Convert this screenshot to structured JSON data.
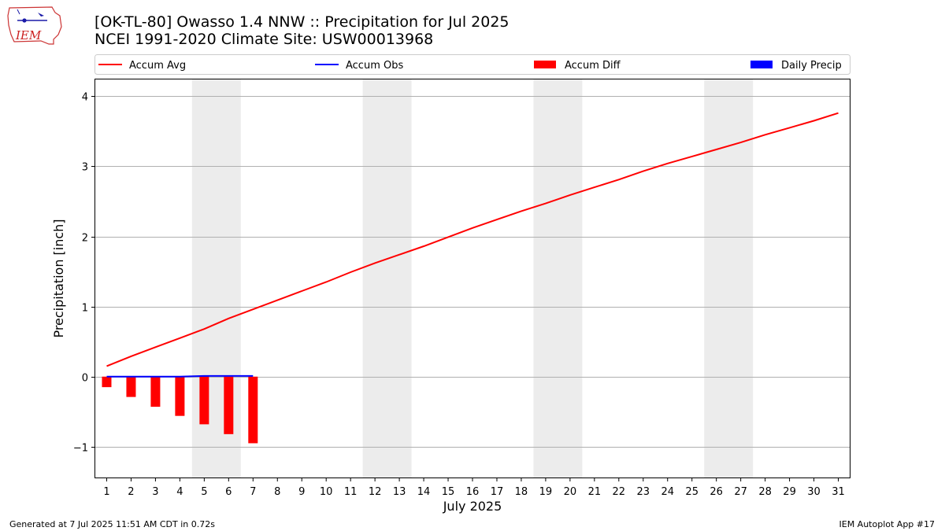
{
  "logo_text": "IEM",
  "title_line1": "[OK-TL-80] Owasso 1.4 NNW :: Precipitation for Jul 2025",
  "title_line2": "NCEI 1991-2020 Climate Site: USW00013968",
  "footer_left": "Generated at 7 Jul 2025 11:51 AM CDT in 0.72s",
  "footer_right": "IEM Autoplot App #17",
  "chart_data": {
    "type": "line",
    "xlabel": "July 2025",
    "ylabel": "Precipitation [inch]",
    "xlim": [
      0.5,
      31.5
    ],
    "ylim": [
      -1.45,
      4.25
    ],
    "x_ticks": [
      1,
      2,
      3,
      4,
      5,
      6,
      7,
      8,
      9,
      10,
      11,
      12,
      13,
      14,
      15,
      16,
      17,
      18,
      19,
      20,
      21,
      22,
      23,
      24,
      25,
      26,
      27,
      28,
      29,
      30,
      31
    ],
    "y_ticks": [
      -1,
      0,
      1,
      2,
      3,
      4
    ],
    "y_tick_labels": [
      "−1",
      "0",
      "1",
      "2",
      "3",
      "4"
    ],
    "grid": "horizontal",
    "legend_position": "top",
    "weekend_shading": [
      [
        4.5,
        6.5
      ],
      [
        11.5,
        13.5
      ],
      [
        18.5,
        20.5
      ],
      [
        25.5,
        27.5
      ]
    ],
    "legend": [
      {
        "label": "Accum Avg",
        "kind": "line",
        "color": "#ff0000"
      },
      {
        "label": "Accum Obs",
        "kind": "line",
        "color": "#0000ff"
      },
      {
        "label": "Accum Diff",
        "kind": "bar",
        "color": "#ff0000"
      },
      {
        "label": "Daily Precip",
        "kind": "bar",
        "color": "#0000ff"
      }
    ],
    "series": [
      {
        "name": "Accum Avg",
        "type": "line",
        "color": "#ff0000",
        "x": [
          1,
          2,
          3,
          4,
          5,
          6,
          7,
          8,
          9,
          10,
          11,
          12,
          13,
          14,
          15,
          16,
          17,
          18,
          19,
          20,
          21,
          22,
          23,
          24,
          25,
          26,
          27,
          28,
          29,
          30,
          31
        ],
        "values": [
          0.15,
          0.29,
          0.42,
          0.55,
          0.68,
          0.83,
          0.96,
          1.09,
          1.22,
          1.35,
          1.49,
          1.62,
          1.74,
          1.86,
          1.99,
          2.12,
          2.24,
          2.36,
          2.47,
          2.59,
          2.7,
          2.81,
          2.93,
          3.04,
          3.14,
          3.24,
          3.34,
          3.45,
          3.55,
          3.65,
          3.76
        ]
      },
      {
        "name": "Accum Obs",
        "type": "line",
        "color": "#0000ff",
        "x": [
          1,
          2,
          3,
          4,
          5,
          6,
          7
        ],
        "values": [
          0.0,
          0.0,
          0.0,
          0.0,
          0.01,
          0.01,
          0.01
        ]
      },
      {
        "name": "Accum Diff",
        "type": "bar",
        "color": "#ff0000",
        "x": [
          1,
          2,
          3,
          4,
          5,
          6,
          7
        ],
        "values": [
          -0.15,
          -0.29,
          -0.43,
          -0.56,
          -0.68,
          -0.82,
          -0.95
        ]
      },
      {
        "name": "Daily Precip",
        "type": "bar",
        "color": "#0000ff",
        "x": [
          1,
          2,
          3,
          4,
          5,
          6,
          7
        ],
        "values": [
          0.0,
          0.0,
          0.0,
          0.0,
          0.01,
          0.0,
          0.0
        ]
      }
    ]
  }
}
